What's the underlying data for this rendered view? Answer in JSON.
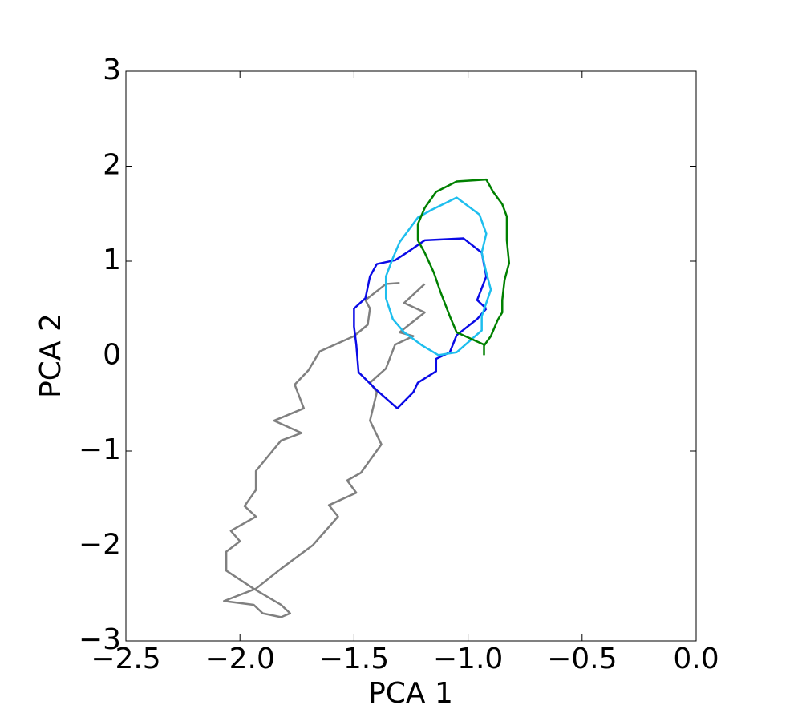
{
  "chart_data": {
    "type": "line",
    "xlabel": "PCA 1",
    "ylabel": "PCA 2",
    "xlim": [
      -2.5,
      0.0
    ],
    "ylim": [
      -3,
      3
    ],
    "xticks": [
      {
        "value": -2.5,
        "label": "−2.5"
      },
      {
        "value": -2.0,
        "label": "−2.0"
      },
      {
        "value": -1.5,
        "label": "−1.5"
      },
      {
        "value": -1.0,
        "label": "−1.0"
      },
      {
        "value": -0.5,
        "label": "−0.5"
      },
      {
        "value": 0.0,
        "label": "0.0"
      }
    ],
    "yticks": [
      {
        "value": -3,
        "label": "−3"
      },
      {
        "value": -2,
        "label": "−2"
      },
      {
        "value": -1,
        "label": "−1"
      },
      0,
      1,
      2,
      3
    ],
    "grid": false,
    "series": [
      {
        "color": "#808080",
        "x": [
          -1.19,
          -1.28,
          -1.19,
          -1.3,
          -1.24,
          -1.32,
          -1.36,
          -1.43,
          -1.4,
          -1.43,
          -1.38,
          -1.47,
          -1.53,
          -1.49,
          -1.61,
          -1.57,
          -1.68,
          -1.82,
          -1.93,
          -2.07,
          -1.94,
          -1.9,
          -1.82,
          -1.78,
          -1.82,
          -1.94,
          -2.06,
          -2.06,
          -2.0,
          -2.04,
          -1.93,
          -1.98,
          -1.93,
          -1.93,
          -1.82,
          -1.73,
          -1.85,
          -1.72,
          -1.76,
          -1.7,
          -1.65,
          -1.5,
          -1.44,
          -1.43,
          -1.45,
          -1.36,
          -1.3
        ],
        "values": [
          0.76,
          0.56,
          0.46,
          0.25,
          0.21,
          0.12,
          -0.13,
          -0.28,
          -0.38,
          -0.68,
          -0.93,
          -1.23,
          -1.31,
          -1.44,
          -1.57,
          -1.69,
          -1.99,
          -2.24,
          -2.45,
          -2.58,
          -2.62,
          -2.71,
          -2.75,
          -2.71,
          -2.62,
          -2.45,
          -2.26,
          -2.06,
          -1.95,
          -1.84,
          -1.69,
          -1.58,
          -1.41,
          -1.21,
          -0.89,
          -0.81,
          -0.68,
          -0.55,
          -0.3,
          -0.15,
          0.05,
          0.21,
          0.33,
          0.5,
          0.59,
          0.76,
          0.77
        ]
      },
      {
        "color": "#0a0ae6",
        "x": [
          -0.92,
          -0.96,
          -0.92,
          -0.94,
          -1.02,
          -1.19,
          -1.25,
          -1.32,
          -1.4,
          -1.43,
          -1.45,
          -1.5,
          -1.5,
          -1.49,
          -1.48,
          -1.4,
          -1.31,
          -1.24,
          -1.22,
          -1.14,
          -1.14,
          -1.08,
          -1.05,
          -0.96,
          -0.92
        ],
        "values": [
          0.5,
          0.59,
          0.84,
          1.09,
          1.24,
          1.22,
          1.12,
          1.01,
          0.97,
          0.84,
          0.61,
          0.5,
          0.31,
          0.12,
          -0.17,
          -0.36,
          -0.55,
          -0.38,
          -0.28,
          -0.16,
          -0.03,
          0.04,
          0.22,
          0.39,
          0.5
        ]
      },
      {
        "color": "#1ebeee",
        "x": [
          -0.94,
          -0.9,
          -0.92,
          -0.94,
          -0.92,
          -0.95,
          -1.05,
          -1.16,
          -1.22,
          -1.3,
          -1.33,
          -1.36,
          -1.36,
          -1.33,
          -1.28,
          -1.2,
          -1.13,
          -1.05,
          -0.94,
          -0.94
        ],
        "values": [
          0.42,
          0.7,
          0.88,
          1.09,
          1.29,
          1.49,
          1.67,
          1.54,
          1.46,
          1.2,
          1.03,
          0.84,
          0.61,
          0.39,
          0.25,
          0.11,
          0.01,
          0.04,
          0.27,
          0.42
        ]
      },
      {
        "color": "#008000",
        "x": [
          -0.93,
          -0.93,
          -1.05,
          -1.08,
          -1.12,
          -1.15,
          -1.19,
          -1.22,
          -1.22,
          -1.19,
          -1.14,
          -1.05,
          -0.92,
          -0.89,
          -0.85,
          -0.83,
          -0.83,
          -0.82,
          -0.84,
          -0.85,
          -0.85,
          -0.87,
          -0.9,
          -0.93
        ],
        "values": [
          0.01,
          0.12,
          0.25,
          0.42,
          0.67,
          0.88,
          1.09,
          1.22,
          1.39,
          1.56,
          1.73,
          1.84,
          1.86,
          1.73,
          1.6,
          1.47,
          1.22,
          0.98,
          0.8,
          0.59,
          0.46,
          0.38,
          0.21,
          0.11
        ]
      }
    ]
  }
}
